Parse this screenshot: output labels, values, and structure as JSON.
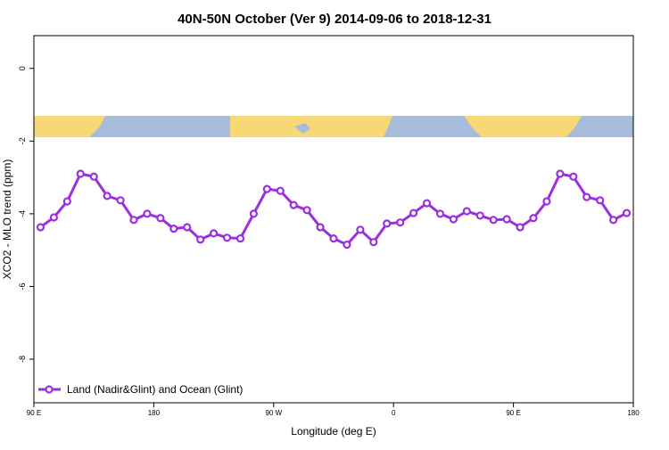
{
  "chart_data": {
    "type": "line",
    "title": "40N-50N October (Ver 9)   2014-09-06 to 2018-12-31",
    "x_label": "Longitude (deg E)",
    "y_label": "XCO2 - MLO trend (ppm)",
    "xlim": [
      90,
      540
    ],
    "xticks": [
      {
        "value": 90,
        "label": "90 E"
      },
      180,
      {
        "value": 270,
        "label": "90 W"
      },
      {
        "value": 360,
        "label": "0"
      },
      {
        "value": 450,
        "label": "90 E"
      },
      {
        "value": 540,
        "label": "180"
      }
    ],
    "ylim": [
      -9.2,
      0.9
    ],
    "yticks": [
      0,
      -2,
      -4,
      -6,
      -8
    ],
    "legend": "bottom-left",
    "x": [
      95,
      105,
      115,
      125,
      135,
      145,
      155,
      165,
      175,
      185,
      195,
      205,
      215,
      225,
      235,
      245,
      255,
      265,
      275,
      285,
      295,
      305,
      315,
      325,
      335,
      345,
      355,
      365,
      375,
      385,
      395,
      405,
      415,
      425,
      435,
      445,
      455,
      465,
      475,
      485,
      495,
      505,
      515,
      525,
      535
    ],
    "series": [
      {
        "name": "Land (Nadir&Glint) and Ocean (Glint)",
        "color": "#9b2fe0",
        "values": [
          -4.37,
          -4.1,
          -3.66,
          -2.9,
          -2.98,
          -3.51,
          -3.63,
          -4.17,
          -4.0,
          -4.12,
          -4.41,
          -4.37,
          -4.71,
          -4.54,
          -4.66,
          -4.68,
          -4.0,
          -3.32,
          -3.37,
          -3.76,
          -3.9,
          -4.37,
          -4.68,
          -4.85,
          -4.44,
          -4.78,
          -4.27,
          -4.24,
          -3.98,
          -3.71,
          -4.0,
          -4.15,
          -3.93,
          -4.05,
          -4.17,
          -4.15,
          -4.37,
          -4.12,
          -3.66,
          -2.9,
          -2.98,
          -3.54,
          -3.63,
          -4.17,
          -3.98
        ]
      }
    ]
  }
}
